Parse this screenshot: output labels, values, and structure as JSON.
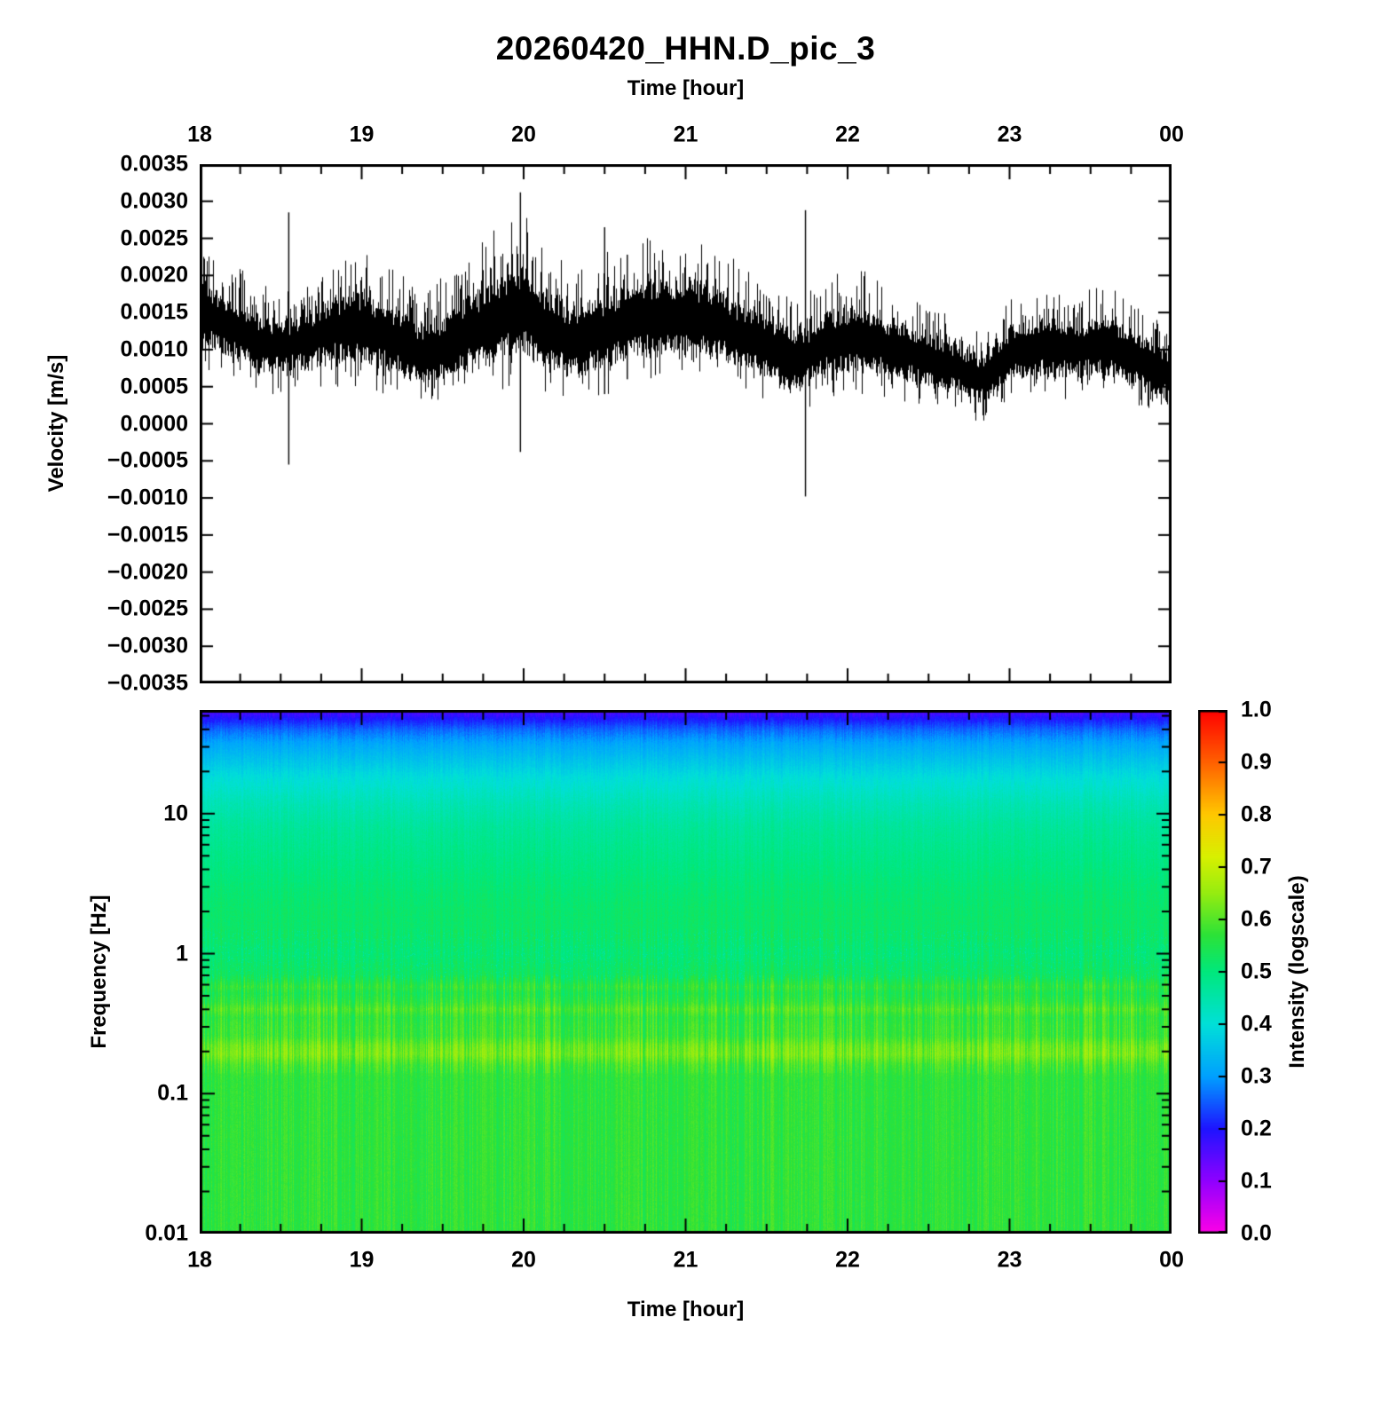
{
  "title": "20260420_HHN.D_pic_3",
  "chart_data": [
    {
      "type": "line",
      "title": "20260420_HHN.D_pic_3",
      "xlabel": "Time [hour]",
      "xlabel_position": "top",
      "ylabel": "Velocity [m/s]",
      "xlim": [
        18,
        24
      ],
      "ylim": [
        -0.0035,
        0.0035
      ],
      "series_color": "#000000",
      "background": "#ffffff",
      "x_ticks": [
        {
          "label": "18",
          "t": 18
        },
        {
          "label": "19",
          "t": 19
        },
        {
          "label": "20",
          "t": 20
        },
        {
          "label": "21",
          "t": 21
        },
        {
          "label": "22",
          "t": 22
        },
        {
          "label": "23",
          "t": 23
        },
        {
          "label": "00",
          "t": 24
        }
      ],
      "y_ticks": [
        {
          "label": "0.0035",
          "v": 0.0035
        },
        {
          "label": "0.0030",
          "v": 0.003
        },
        {
          "label": "0.0025",
          "v": 0.0025
        },
        {
          "label": "0.0020",
          "v": 0.002
        },
        {
          "label": "0.0015",
          "v": 0.0015
        },
        {
          "label": "0.0010",
          "v": 0.001
        },
        {
          "label": "0.0005",
          "v": 0.0005
        },
        {
          "label": "0.0000",
          "v": 0.0
        },
        {
          "label": "−0.0005",
          "v": -0.0005
        },
        {
          "label": "−0.0010",
          "v": -0.001
        },
        {
          "label": "−0.0015",
          "v": -0.0015
        },
        {
          "label": "−0.0020",
          "v": -0.002
        },
        {
          "label": "−0.0025",
          "v": -0.0025
        },
        {
          "label": "−0.0030",
          "v": -0.003
        },
        {
          "label": "−0.0035",
          "v": -0.0035
        }
      ],
      "noise_envelope": {
        "t": [
          18.0,
          18.2,
          18.4,
          18.6,
          18.8,
          19.0,
          19.2,
          19.4,
          19.6,
          19.8,
          20.0,
          20.1,
          20.3,
          20.5,
          20.7,
          20.9,
          21.1,
          21.3,
          21.5,
          21.7,
          21.9,
          22.1,
          22.3,
          22.5,
          22.7,
          22.85,
          23.0,
          23.2,
          23.4,
          23.6,
          23.8,
          23.95,
          24.0
        ],
        "center": [
          0.0015,
          0.00128,
          0.00105,
          0.00108,
          0.00125,
          0.0013,
          0.00115,
          0.0009,
          0.00112,
          0.0014,
          0.00155,
          0.00135,
          0.0011,
          0.00122,
          0.00145,
          0.0014,
          0.00145,
          0.00125,
          0.00105,
          0.00085,
          0.0011,
          0.00115,
          0.001,
          0.00085,
          0.00072,
          0.00058,
          0.00095,
          0.00105,
          0.001,
          0.00105,
          0.00085,
          0.00068,
          0.00055
        ],
        "half_width": [
          0.00042,
          0.00038,
          0.00034,
          0.00034,
          0.0004,
          0.00044,
          0.0004,
          0.00038,
          0.00044,
          0.0005,
          0.00055,
          0.00046,
          0.00044,
          0.00045,
          0.0005,
          0.00046,
          0.00046,
          0.0004,
          0.0004,
          0.00036,
          0.0004,
          0.0004,
          0.00036,
          0.00034,
          0.0003,
          0.00028,
          0.00034,
          0.00036,
          0.00034,
          0.00038,
          0.00034,
          0.00032,
          0.0003
        ]
      },
      "spikes": [
        {
          "t": 18.55,
          "y_min": -0.00055,
          "y_max": 0.00285
        },
        {
          "t": 19.98,
          "y_min": -0.00038,
          "y_max": 0.00312
        },
        {
          "t": 20.5,
          "y_min": 0.0004,
          "y_max": 0.00265
        },
        {
          "t": 20.64,
          "y_min": 0.0006,
          "y_max": 0.00228
        },
        {
          "t": 21.74,
          "y_min": -0.00098,
          "y_max": 0.00288
        }
      ]
    },
    {
      "type": "heatmap",
      "xlabel": "Time [hour]",
      "xlabel_position": "bottom",
      "ylabel": "Frequency [Hz]",
      "xlim": [
        18,
        24
      ],
      "f_lim": [
        0.01,
        55
      ],
      "f_scale": "log",
      "x_ticks": [
        {
          "label": "18",
          "t": 18
        },
        {
          "label": "19",
          "t": 19
        },
        {
          "label": "20",
          "t": 20
        },
        {
          "label": "21",
          "t": 21
        },
        {
          "label": "22",
          "t": 22
        },
        {
          "label": "23",
          "t": 23
        },
        {
          "label": "00",
          "t": 24
        }
      ],
      "f_ticks": [
        {
          "label": "10",
          "f": 10
        },
        {
          "label": "1",
          "f": 1
        },
        {
          "label": "0.1",
          "f": 0.1
        },
        {
          "label": "0.01",
          "f": 0.01
        }
      ],
      "colorbar": {
        "label": "Intensity (logscale)",
        "range": [
          0.0,
          1.0
        ],
        "ticks": [
          {
            "label": "1.0",
            "v": 1.0
          },
          {
            "label": "0.9",
            "v": 0.9
          },
          {
            "label": "0.8",
            "v": 0.8
          },
          {
            "label": "0.7",
            "v": 0.7
          },
          {
            "label": "0.6",
            "v": 0.6
          },
          {
            "label": "0.5",
            "v": 0.5
          },
          {
            "label": "0.4",
            "v": 0.4
          },
          {
            "label": "0.3",
            "v": 0.3
          },
          {
            "label": "0.2",
            "v": 0.2
          },
          {
            "label": "0.1",
            "v": 0.1
          },
          {
            "label": "0.0",
            "v": 0.0
          }
        ],
        "stops": [
          {
            "v": 0.0,
            "color": "#FF00E6"
          },
          {
            "v": 0.1,
            "color": "#9000FF"
          },
          {
            "v": 0.2,
            "color": "#1E14FF"
          },
          {
            "v": 0.3,
            "color": "#00A0FF"
          },
          {
            "v": 0.4,
            "color": "#00E0D8"
          },
          {
            "v": 0.5,
            "color": "#00E87C"
          },
          {
            "v": 0.57,
            "color": "#2CE238"
          },
          {
            "v": 0.65,
            "color": "#96EC10"
          },
          {
            "v": 0.72,
            "color": "#D8F000"
          },
          {
            "v": 0.8,
            "color": "#FFC800"
          },
          {
            "v": 0.9,
            "color": "#FF6000"
          },
          {
            "v": 1.0,
            "color": "#FF0000"
          }
        ]
      },
      "intensity_profile": {
        "freq": [
          0.01,
          0.05,
          0.1,
          0.13,
          0.16,
          0.19,
          0.22,
          0.26,
          0.3,
          0.35,
          0.4,
          0.45,
          0.52,
          0.58,
          0.63,
          0.7,
          0.85,
          1.0,
          1.3,
          2.0,
          3.0,
          5.0,
          8.0,
          12,
          18,
          25,
          32,
          40,
          48,
          55
        ],
        "intensity": [
          0.57,
          0.57,
          0.57,
          0.57,
          0.59,
          0.63,
          0.62,
          0.58,
          0.58,
          0.57,
          0.6,
          0.57,
          0.55,
          0.57,
          0.55,
          0.53,
          0.52,
          0.51,
          0.52,
          0.52,
          0.51,
          0.49,
          0.47,
          0.44,
          0.4,
          0.35,
          0.31,
          0.26,
          0.2,
          0.15
        ]
      },
      "stripe_bands": [
        {
          "f_min": 0.01,
          "f_max": 0.14,
          "amp": 0.03
        },
        {
          "f_min": 0.14,
          "f_max": 0.7,
          "amp": 0.05
        },
        {
          "f_min": 0.7,
          "f_max": 1.5,
          "amp": 0.028
        },
        {
          "f_min": 1.5,
          "f_max": 55,
          "amp": 0.015
        }
      ],
      "speckle": {
        "f_min": 0.65,
        "f_max": 1.45,
        "prob": 0.05,
        "delta": -0.055
      }
    }
  ]
}
